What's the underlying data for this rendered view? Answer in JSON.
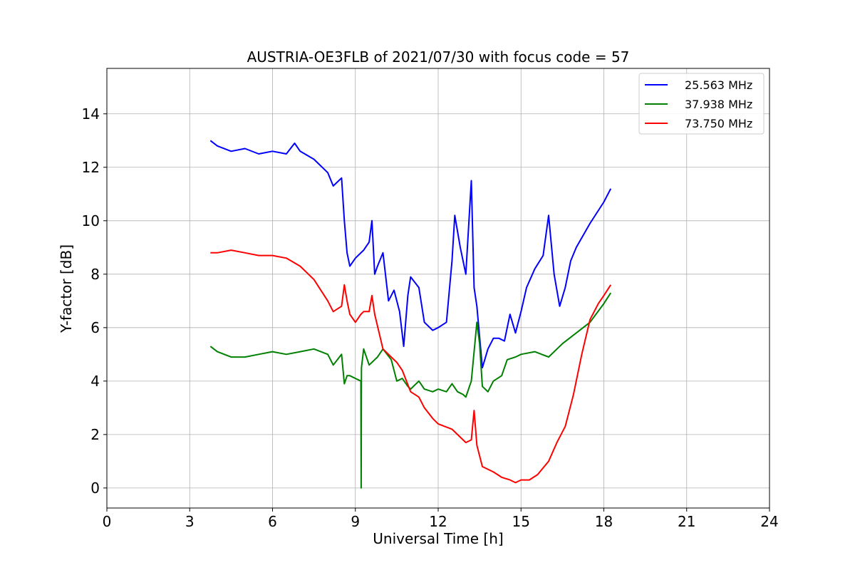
{
  "chart_data": {
    "type": "line",
    "title": "AUSTRIA-OE3FLB of 2021/07/30 with focus code = 57",
    "xlabel": "Universal Time [h]",
    "ylabel": "Y-factor [dB]",
    "xlim": [
      0,
      24
    ],
    "ylim": [
      -0.75,
      15.7
    ],
    "xticks": [
      0,
      3,
      6,
      9,
      12,
      15,
      18,
      21,
      24
    ],
    "yticks": [
      0,
      2,
      4,
      6,
      8,
      10,
      12,
      14
    ],
    "grid": true,
    "legend_position": "top-right",
    "series": [
      {
        "name": "25.563 MHz",
        "color": "#0000ff",
        "x": [
          3.75,
          4.0,
          4.5,
          5.0,
          5.5,
          6.0,
          6.5,
          6.8,
          7.0,
          7.5,
          8.0,
          8.2,
          8.5,
          8.6,
          8.7,
          8.8,
          9.0,
          9.3,
          9.5,
          9.6,
          9.7,
          9.8,
          10.0,
          10.2,
          10.4,
          10.6,
          10.75,
          10.9,
          11.0,
          11.3,
          11.5,
          11.8,
          12.0,
          12.3,
          12.5,
          12.6,
          12.8,
          13.0,
          13.2,
          13.3,
          13.4,
          13.6,
          13.8,
          14.0,
          14.2,
          14.4,
          14.6,
          14.8,
          15.0,
          15.2,
          15.5,
          15.8,
          16.0,
          16.2,
          16.4,
          16.6,
          16.8,
          17.0,
          17.5,
          18.0,
          18.25
        ],
        "values": [
          13.0,
          12.8,
          12.6,
          12.7,
          12.5,
          12.6,
          12.5,
          12.9,
          12.6,
          12.3,
          11.8,
          11.3,
          11.6,
          10.0,
          8.8,
          8.3,
          8.6,
          8.9,
          9.2,
          10.0,
          8.0,
          8.3,
          8.8,
          7.0,
          7.4,
          6.6,
          5.3,
          7.2,
          7.9,
          7.5,
          6.2,
          5.9,
          6.0,
          6.2,
          8.5,
          10.2,
          9.0,
          8.0,
          11.5,
          7.5,
          6.8,
          4.5,
          5.2,
          5.6,
          5.6,
          5.5,
          6.5,
          5.8,
          6.6,
          7.5,
          8.2,
          8.7,
          10.2,
          8.0,
          6.8,
          7.5,
          8.5,
          9.0,
          9.9,
          10.7,
          11.2
        ]
      },
      {
        "name": "37.938 MHz",
        "color": "#008000",
        "x": [
          3.75,
          4.0,
          4.5,
          5.0,
          5.5,
          6.0,
          6.5,
          7.0,
          7.5,
          8.0,
          8.2,
          8.5,
          8.6,
          8.7,
          8.8,
          9.0,
          9.2,
          9.21,
          9.22,
          9.3,
          9.5,
          9.7,
          9.8,
          10.0,
          10.3,
          10.5,
          10.7,
          10.9,
          11.0,
          11.3,
          11.5,
          11.8,
          12.0,
          12.3,
          12.5,
          12.7,
          12.9,
          13.0,
          13.2,
          13.4,
          13.5,
          13.6,
          13.8,
          14.0,
          14.3,
          14.5,
          14.8,
          15.0,
          15.5,
          16.0,
          16.5,
          17.0,
          17.5,
          18.0,
          18.25
        ],
        "values": [
          5.3,
          5.1,
          4.9,
          4.9,
          5.0,
          5.1,
          5.0,
          5.1,
          5.2,
          5.0,
          4.6,
          5.0,
          3.9,
          4.2,
          4.2,
          4.1,
          4.0,
          0.0,
          4.5,
          5.2,
          4.6,
          4.8,
          4.9,
          5.2,
          4.8,
          4.0,
          4.1,
          3.8,
          3.7,
          4.0,
          3.7,
          3.6,
          3.7,
          3.6,
          3.9,
          3.6,
          3.5,
          3.4,
          4.0,
          6.2,
          5.4,
          3.8,
          3.6,
          4.0,
          4.2,
          4.8,
          4.9,
          5.0,
          5.1,
          4.9,
          5.4,
          5.8,
          6.2,
          6.9,
          7.3
        ]
      },
      {
        "name": "73.750 MHz",
        "color": "#ff0000",
        "x": [
          3.75,
          4.0,
          4.5,
          5.0,
          5.5,
          6.0,
          6.5,
          7.0,
          7.5,
          8.0,
          8.2,
          8.5,
          8.6,
          8.7,
          8.8,
          9.0,
          9.2,
          9.3,
          9.5,
          9.6,
          9.7,
          10.0,
          10.3,
          10.5,
          10.7,
          11.0,
          11.3,
          11.5,
          11.8,
          12.0,
          12.5,
          13.0,
          13.2,
          13.3,
          13.4,
          13.6,
          14.0,
          14.3,
          14.6,
          14.8,
          15.0,
          15.3,
          15.6,
          16.0,
          16.3,
          16.6,
          16.9,
          17.2,
          17.5,
          17.8,
          18.0,
          18.25
        ],
        "values": [
          8.8,
          8.8,
          8.9,
          8.8,
          8.7,
          8.7,
          8.6,
          8.3,
          7.8,
          7.0,
          6.6,
          6.8,
          7.6,
          7.0,
          6.5,
          6.2,
          6.5,
          6.6,
          6.6,
          7.2,
          6.5,
          5.2,
          4.9,
          4.7,
          4.4,
          3.6,
          3.4,
          3.0,
          2.6,
          2.4,
          2.2,
          1.7,
          1.8,
          2.9,
          1.6,
          0.8,
          0.6,
          0.4,
          0.3,
          0.2,
          0.3,
          0.3,
          0.5,
          1.0,
          1.7,
          2.3,
          3.5,
          5.0,
          6.3,
          6.9,
          7.2,
          7.6
        ]
      }
    ]
  }
}
